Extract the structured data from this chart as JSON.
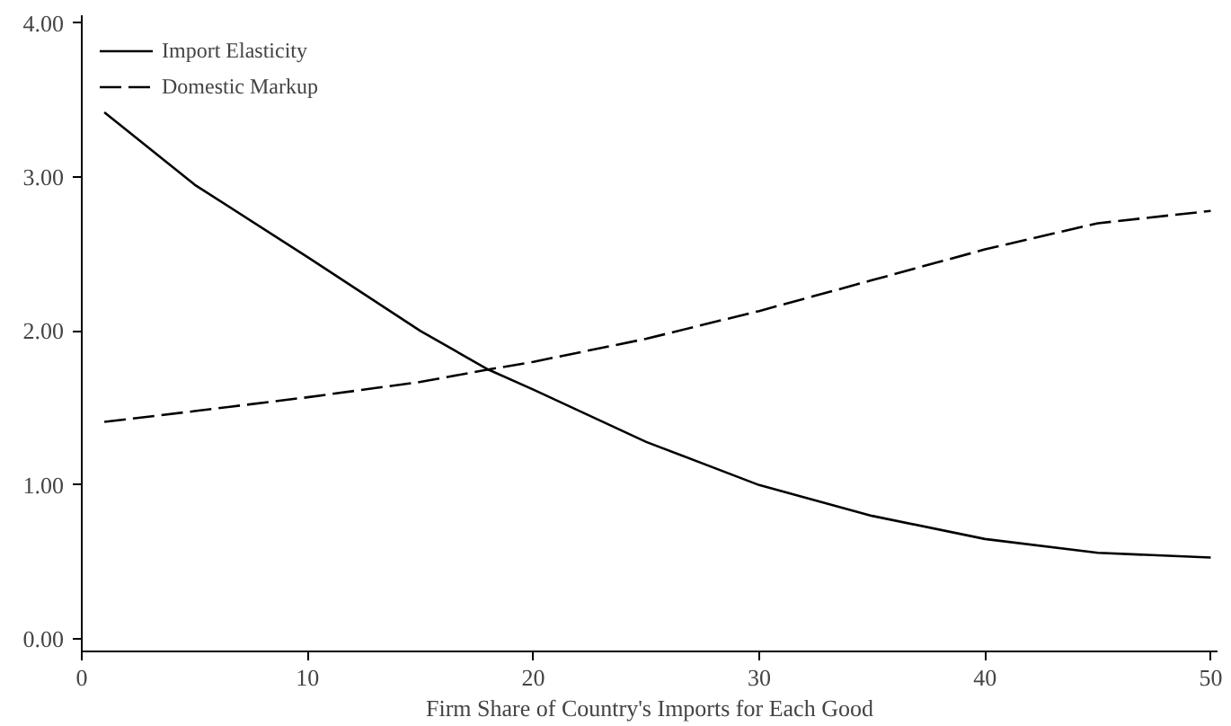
{
  "chart_data": {
    "type": "line",
    "xlabel": "Firm Share of Country's Imports for Each Good",
    "x": [
      1,
      5,
      10,
      15,
      18,
      20,
      25,
      30,
      35,
      40,
      45,
      50
    ],
    "series": [
      {
        "name": "Import Elasticity",
        "color": "#000000",
        "line_style": "solid",
        "values": [
          3.42,
          2.95,
          2.48,
          2.0,
          1.75,
          1.62,
          1.28,
          1.0,
          0.8,
          0.65,
          0.56,
          0.53
        ]
      },
      {
        "name": "Domestic Markup",
        "color": "#000000",
        "line_style": "dashed",
        "values": [
          1.41,
          1.48,
          1.57,
          1.67,
          1.75,
          1.8,
          1.95,
          2.13,
          2.33,
          2.53,
          2.7,
          2.78
        ]
      }
    ],
    "xlim": [
      0,
      50.3
    ],
    "ylim": [
      -0.08,
      4.05
    ],
    "xticks": [
      0,
      10,
      20,
      30,
      40,
      50
    ],
    "yticks": [
      {
        "value": 0,
        "label": "0.00"
      },
      {
        "value": 1,
        "label": "1.00"
      },
      {
        "value": 2,
        "label": "2.00"
      },
      {
        "value": 3,
        "label": "3.00"
      },
      {
        "value": 4,
        "label": "4.00"
      }
    ],
    "grid": false,
    "legend": "top left",
    "marker": "none"
  }
}
